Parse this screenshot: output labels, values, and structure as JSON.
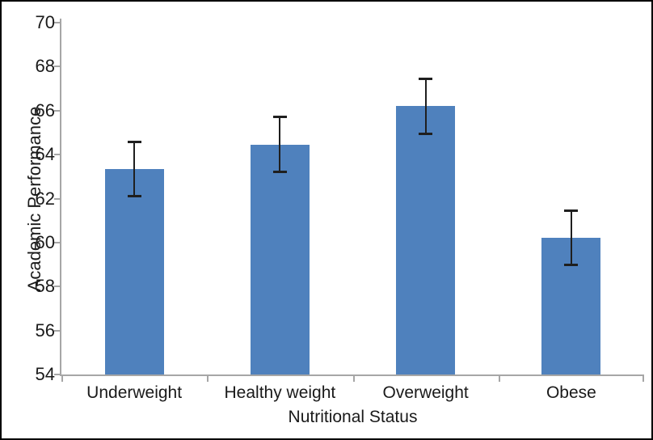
{
  "figure": {
    "background_color": "#ffffff",
    "border_color": "#000000"
  },
  "chart_data": {
    "type": "bar",
    "title": "",
    "xlabel": "Nutritional Status",
    "ylabel": "Academic Performance",
    "categories": [
      "Underweight",
      "Healthy weight",
      "Overweight",
      "Obese"
    ],
    "values": [
      63.35,
      64.45,
      66.2,
      60.2
    ],
    "error_bars": [
      1.25,
      1.27,
      1.27,
      1.25
    ],
    "ylim": [
      54,
      70
    ],
    "yticks": [
      54,
      56,
      58,
      60,
      62,
      64,
      66,
      68,
      70
    ],
    "grid": false,
    "legend": false,
    "bar_color": "#4f81bd",
    "error_bar_color": "#1f1f1f",
    "axis_color": "#a6a6a6",
    "text_color": "#1a1a1a"
  }
}
